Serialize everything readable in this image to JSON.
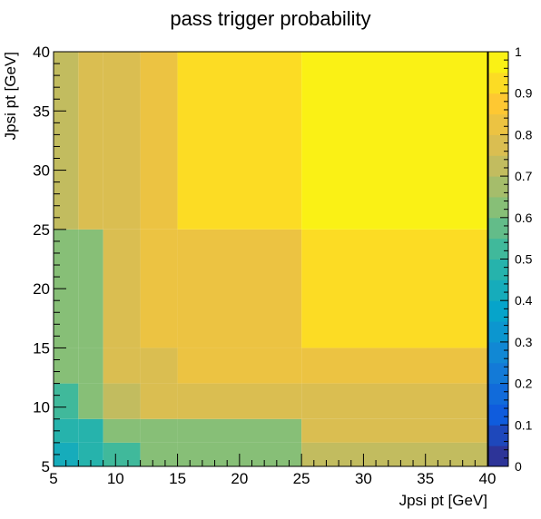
{
  "chart_data": {
    "type": "heatmap",
    "title": "pass trigger probability",
    "xlabel": "Jpsi pt [GeV]",
    "ylabel": "Jpsi pt [GeV]",
    "xlim": [
      5,
      40
    ],
    "ylim": [
      5,
      40
    ],
    "x_edges": [
      5,
      7,
      9,
      12,
      15,
      25,
      40
    ],
    "y_edges": [
      5,
      7,
      9,
      12,
      15,
      25,
      40
    ],
    "z": [
      [
        0.4,
        0.45,
        0.5,
        0.63,
        0.63,
        0.7
      ],
      [
        0.45,
        0.45,
        0.6,
        0.63,
        0.63,
        0.75
      ],
      [
        0.5,
        0.6,
        0.7,
        0.77,
        0.77,
        0.75
      ],
      [
        0.63,
        0.63,
        0.77,
        0.77,
        0.82,
        0.82
      ],
      [
        0.63,
        0.63,
        0.77,
        0.82,
        0.82,
        0.92
      ],
      [
        0.7,
        0.75,
        0.75,
        0.82,
        0.92,
        0.99
      ]
    ],
    "zlim": [
      0,
      1
    ],
    "x_ticks": [
      "5",
      "10",
      "15",
      "20",
      "25",
      "30",
      "35",
      "40"
    ],
    "y_ticks": [
      "5",
      "10",
      "15",
      "20",
      "25",
      "30",
      "35",
      "40"
    ],
    "colorbar_ticks": [
      "0",
      "0.1",
      "0.2",
      "0.3",
      "0.4",
      "0.5",
      "0.6",
      "0.7",
      "0.8",
      "0.9",
      "1"
    ],
    "palette": [
      "#352a87",
      "#0f5cdd",
      "#1481d6",
      "#06a4ca",
      "#2eb7a4",
      "#87bf77",
      "#d1bb59",
      "#fec832",
      "#f9fb0e"
    ]
  }
}
